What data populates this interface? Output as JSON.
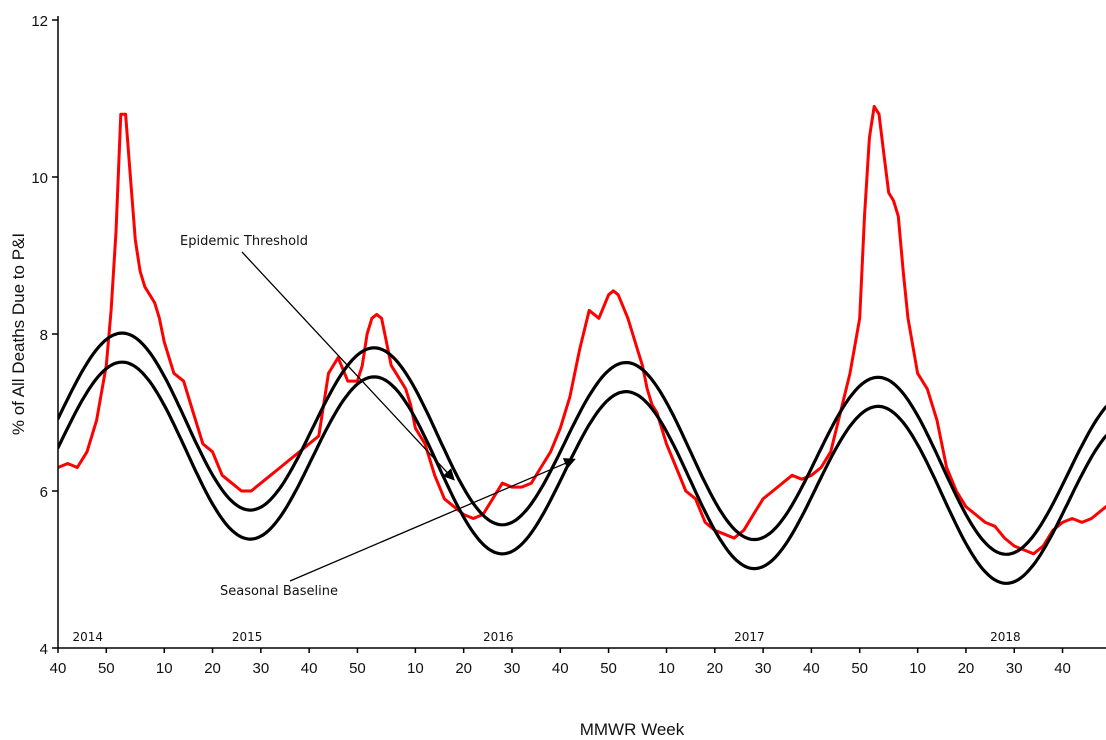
{
  "chart_data": {
    "type": "line",
    "title": "",
    "xlabel": "MMWR Week",
    "ylabel": "% of All Deaths Due to P&I",
    "ylim": [
      4,
      12
    ],
    "yticks": [
      4,
      6,
      8,
      10,
      12
    ],
    "x_range_weeks": [
      0,
      217
    ],
    "x_tick_labels": [
      "40",
      "50",
      "10",
      "20",
      "30",
      "40",
      "50",
      "10",
      "20",
      "30",
      "40",
      "50",
      "10",
      "20",
      "30",
      "40",
      "50",
      "10",
      "20",
      "30",
      "40"
    ],
    "x_tick_weeks": [
      0,
      10,
      22,
      32,
      42,
      52,
      62,
      74,
      84,
      94,
      104,
      114,
      126,
      136,
      146,
      156,
      166,
      178,
      188,
      198,
      208
    ],
    "year_labels": [
      {
        "label": "2014",
        "week": 3
      },
      {
        "label": "2015",
        "week": 36
      },
      {
        "label": "2016",
        "week": 88
      },
      {
        "label": "2017",
        "week": 140
      },
      {
        "label": "2018",
        "week": 193
      }
    ],
    "grid": false,
    "legend": "none",
    "series": [
      {
        "key": "pi_mortality",
        "color": "#ff0000",
        "x": [
          0,
          2,
          4,
          6,
          8,
          10,
          11,
          12,
          13,
          14,
          15,
          16,
          17,
          18,
          19,
          20,
          21,
          22,
          24,
          26,
          28,
          30,
          32,
          34,
          36,
          38,
          40,
          42,
          44,
          46,
          48,
          50,
          52,
          54,
          56,
          58,
          60,
          62,
          63,
          64,
          65,
          66,
          67,
          68,
          69,
          70,
          71,
          72,
          73,
          74,
          76,
          78,
          80,
          82,
          84,
          86,
          88,
          90,
          92,
          94,
          96,
          98,
          100,
          102,
          104,
          106,
          108,
          110,
          112,
          114,
          115,
          116,
          118,
          120,
          121,
          122,
          123,
          124,
          126,
          128,
          130,
          132,
          134,
          136,
          138,
          140,
          142,
          144,
          146,
          148,
          150,
          152,
          154,
          156,
          158,
          160,
          162,
          164,
          166,
          167,
          168,
          169,
          170,
          171,
          172,
          173,
          174,
          175,
          176,
          178,
          180,
          182,
          184,
          186,
          188,
          190,
          192,
          194,
          196,
          198,
          200,
          202,
          204,
          206,
          208,
          210,
          212,
          214,
          217
        ],
        "y": [
          6.3,
          6.35,
          6.3,
          6.5,
          6.9,
          7.6,
          8.3,
          9.3,
          10.8,
          10.8,
          10.0,
          9.2,
          8.8,
          8.6,
          8.5,
          8.4,
          8.2,
          7.9,
          7.5,
          7.4,
          7.0,
          6.6,
          6.5,
          6.2,
          6.1,
          6.0,
          6.0,
          6.1,
          6.2,
          6.3,
          6.4,
          6.5,
          6.6,
          6.7,
          7.5,
          7.7,
          7.4,
          7.4,
          7.6,
          8.0,
          8.2,
          8.25,
          8.2,
          7.9,
          7.6,
          7.5,
          7.4,
          7.3,
          7.1,
          6.8,
          6.6,
          6.2,
          5.9,
          5.8,
          5.7,
          5.65,
          5.7,
          5.9,
          6.1,
          6.05,
          6.05,
          6.1,
          6.3,
          6.5,
          6.8,
          7.2,
          7.8,
          8.3,
          8.2,
          8.5,
          8.55,
          8.5,
          8.2,
          7.8,
          7.6,
          7.3,
          7.1,
          7.0,
          6.6,
          6.3,
          6.0,
          5.9,
          5.6,
          5.5,
          5.45,
          5.4,
          5.5,
          5.7,
          5.9,
          6.0,
          6.1,
          6.2,
          6.15,
          6.2,
          6.3,
          6.5,
          7.0,
          7.5,
          8.2,
          9.5,
          10.5,
          10.9,
          10.8,
          10.3,
          9.8,
          9.7,
          9.5,
          8.8,
          8.2,
          7.5,
          7.3,
          6.9,
          6.3,
          6.0,
          5.8,
          5.7,
          5.6,
          5.55,
          5.4,
          5.3,
          5.25,
          5.2,
          5.3,
          5.5,
          5.6,
          5.65,
          5.6,
          5.65,
          5.8
        ]
      },
      {
        "key": "epidemic_threshold",
        "name": "Epidemic Threshold",
        "color": "#000000",
        "model": {
          "mean": 6.98,
          "amplitude": 1.08,
          "peak_week": 13.5,
          "period": 52.18,
          "trend_per_week": -0.0036
        }
      },
      {
        "key": "seasonal_baseline",
        "name": "Seasonal Baseline",
        "color": "#000000",
        "model": {
          "mean": 6.61,
          "amplitude": 1.08,
          "peak_week": 13.5,
          "period": 52.18,
          "trend_per_week": -0.0036
        }
      }
    ],
    "annotations": [
      {
        "key": "threshold",
        "text": "Epidemic Threshold",
        "arrow_target_week": 82,
        "arrow_target_series": "epidemic_threshold"
      },
      {
        "key": "baseline",
        "text": "Seasonal Baseline",
        "arrow_target_week": 107,
        "arrow_target_series": "seasonal_baseline"
      }
    ]
  }
}
